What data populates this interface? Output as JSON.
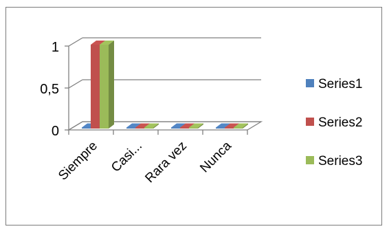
{
  "chart_data": {
    "type": "bar",
    "style": "3d-clustered-column",
    "categories": [
      "Siempre",
      "Casi...",
      "Rara vez",
      "Nunca"
    ],
    "series": [
      {
        "name": "Series1",
        "color": "#4f81bd",
        "values": [
          0,
          0,
          0,
          0
        ]
      },
      {
        "name": "Series2",
        "color": "#c0504d",
        "values": [
          1,
          0,
          0,
          0
        ]
      },
      {
        "name": "Series3",
        "color": "#9bbb59",
        "values": [
          1,
          0,
          0,
          0
        ]
      }
    ],
    "yticks": [
      "0",
      "0,5",
      "1"
    ],
    "ytick_values": [
      0,
      0.5,
      1
    ],
    "ylim": [
      0,
      1
    ],
    "grid": "horizontal",
    "legend": "right"
  }
}
